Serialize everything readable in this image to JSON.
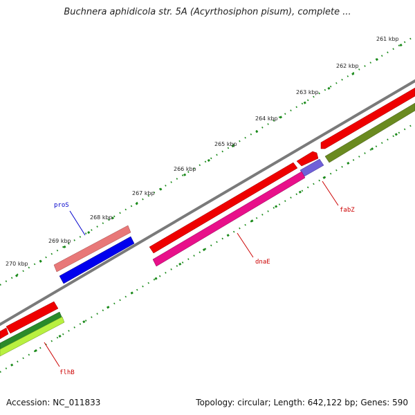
{
  "title": "Buchnera aphidicola str. 5A (Acyrthosiphon pisum), complete ...",
  "footer": {
    "accession": "Accession: NC_011833",
    "summary": "Topology: circular; Length: 642,122 bp; Genes: 590"
  },
  "ticks": [
    "261 kbp",
    "262 kbp",
    "263 kbp",
    "264 kbp",
    "265 kbp",
    "266 kbp",
    "267 kbp",
    "268 kbp",
    "269 kbp",
    "270 kbp"
  ],
  "genes": {
    "proS": {
      "label": "proS",
      "color": "#0000cc"
    },
    "dnaE": {
      "label": "dnaE",
      "color": "#cc0000"
    },
    "fabZ": {
      "label": "fabZ",
      "color": "#cc0000"
    },
    "flhB": {
      "label": "flhB",
      "color": "#cc0000"
    }
  },
  "colors": {
    "backbone": "#808080",
    "tick": "#1a7a1a",
    "cds_red": "#ee0000",
    "cds_pink": "#e8108a",
    "cds_salmon": "#e87878",
    "cds_blue": "#0000ee",
    "cds_violet": "#7060d8",
    "cds_olive": "#6a8a20",
    "cds_green": "#2a8a2a",
    "cds_lime": "#b8f040"
  }
}
